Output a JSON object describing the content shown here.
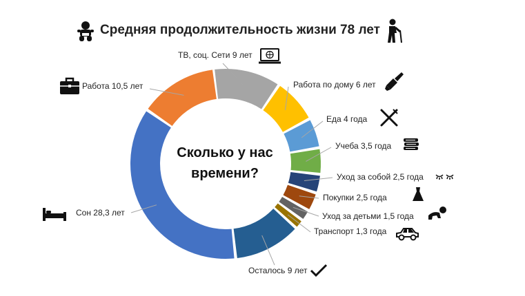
{
  "title": "Средняя продолжительность жизни 78 лет",
  "center_text": [
    "Сколько у нас",
    "времени?"
  ],
  "chart_data": {
    "type": "pie",
    "title": "Средняя продолжительность жизни 78 лет",
    "total": 78,
    "unit": "лет",
    "slices": [
      {
        "name": "ТВ, соц. Сети",
        "value": 9,
        "label": "ТВ, соц. Сети 9 лет",
        "color": "#a5a5a5",
        "icon": "computer-icon"
      },
      {
        "name": "Работа по дому",
        "value": 6,
        "label": "Работа по дому 6 лет",
        "color": "#ffc000",
        "icon": "paintbrush-icon"
      },
      {
        "name": "Еда",
        "value": 4,
        "label": "Еда 4 года",
        "color": "#5b9bd5",
        "icon": "fork-knife-icon"
      },
      {
        "name": "Учеба",
        "value": 3.5,
        "label": "Учеба 3,5 года",
        "color": "#70ad47",
        "icon": "books-icon"
      },
      {
        "name": "Уход за собой",
        "value": 2.5,
        "label": "Уход за собой 2,5 года",
        "color": "#264478",
        "icon": "eyelashes-icon"
      },
      {
        "name": "Покупки",
        "value": 2.5,
        "label": "Покупки 2,5 года",
        "color": "#9e480e",
        "icon": "dress-icon"
      },
      {
        "name": "Уход за детьми",
        "value": 1.5,
        "label": "Уход за детьми 1,5 года",
        "color": "#636363",
        "icon": "crawling-baby-icon"
      },
      {
        "name": "Транспорт",
        "value": 1.3,
        "label": "Транспорт 1,3 года",
        "color": "#997300",
        "icon": "car-icon"
      },
      {
        "name": "Осталось",
        "value": 9,
        "label": "Осталось 9 лет",
        "color": "#255e91",
        "icon": "checkmark-icon"
      },
      {
        "name": "Сон",
        "value": 28.3,
        "label": "Сон 28,3 лет",
        "color": "#4472c4",
        "icon": "bed-icon"
      },
      {
        "name": "Работа",
        "value": 10.5,
        "label": "Работа 10,5 лет",
        "color": "#ed7d31",
        "icon": "briefcase-icon"
      }
    ]
  },
  "icons": {
    "title_left": "baby-icon",
    "title_right": "elderly-person-icon"
  }
}
